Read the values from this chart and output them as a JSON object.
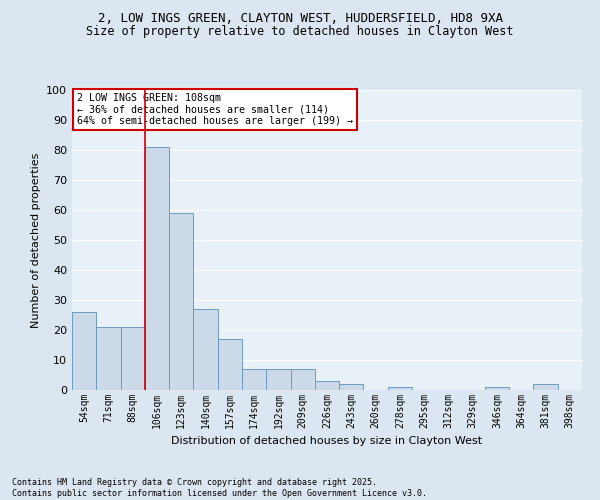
{
  "title_line1": "2, LOW INGS GREEN, CLAYTON WEST, HUDDERSFIELD, HD8 9XA",
  "title_line2": "Size of property relative to detached houses in Clayton West",
  "xlabel": "Distribution of detached houses by size in Clayton West",
  "ylabel": "Number of detached properties",
  "categories": [
    "54sqm",
    "71sqm",
    "88sqm",
    "106sqm",
    "123sqm",
    "140sqm",
    "157sqm",
    "174sqm",
    "192sqm",
    "209sqm",
    "226sqm",
    "243sqm",
    "260sqm",
    "278sqm",
    "295sqm",
    "312sqm",
    "329sqm",
    "346sqm",
    "364sqm",
    "381sqm",
    "398sqm"
  ],
  "values": [
    26,
    21,
    21,
    81,
    59,
    27,
    17,
    7,
    7,
    7,
    3,
    2,
    0,
    1,
    0,
    0,
    0,
    1,
    0,
    2,
    0
  ],
  "bar_color": "#ccd9e8",
  "bar_edge_color": "#6a9bbf",
  "vline_color": "#cc0000",
  "vline_index": 3,
  "annotation_text": "2 LOW INGS GREEN: 108sqm\n← 36% of detached houses are smaller (114)\n64% of semi-detached houses are larger (199) →",
  "annotation_box_edgecolor": "#cc0000",
  "ylim": [
    0,
    100
  ],
  "yticks": [
    0,
    10,
    20,
    30,
    40,
    50,
    60,
    70,
    80,
    90,
    100
  ],
  "footnote": "Contains HM Land Registry data © Crown copyright and database right 2025.\nContains public sector information licensed under the Open Government Licence v3.0.",
  "bg_color": "#dce6f0",
  "plot_bg_color": "#e8f0f8",
  "grid_color": "#ffffff"
}
